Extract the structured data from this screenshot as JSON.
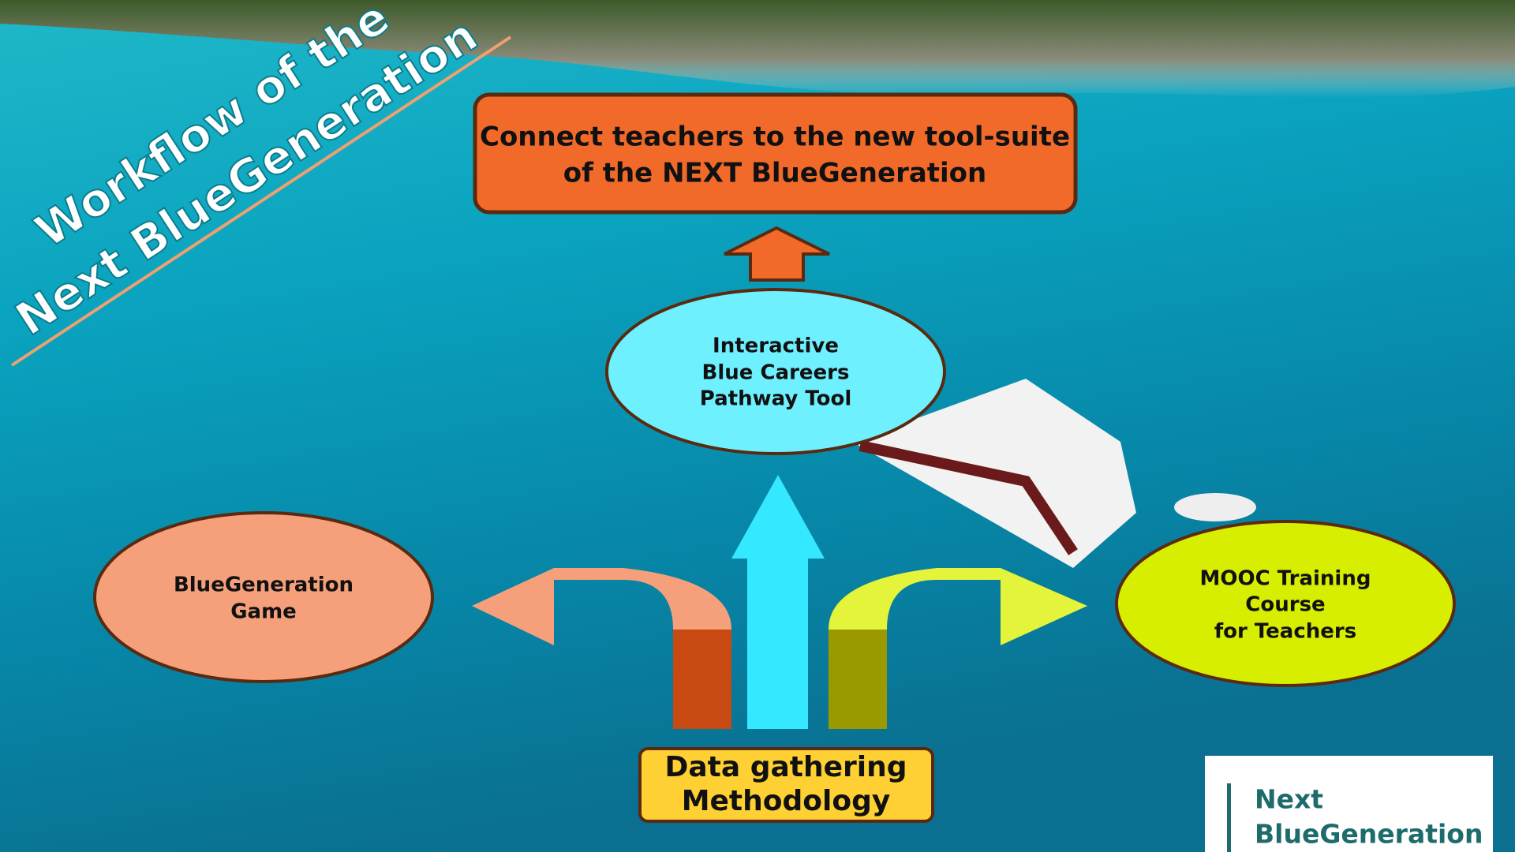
{
  "title": {
    "lines": [
      "Workflow of the",
      "Next BlueGeneration"
    ]
  },
  "nodes": [
    {
      "lines": [
        "Connect teachers to the new tool-suite",
        "of the NEXT BlueGeneration"
      ]
    },
    {
      "lines": [
        "Interactive",
        "Blue Careers",
        "Pathway Tool"
      ]
    },
    {
      "lines": [
        "BlueGeneration",
        "Game"
      ]
    },
    {
      "lines": [
        "MOOC Training",
        "Course",
        "for Teachers"
      ]
    },
    {
      "lines": [
        "Data gathering",
        "Methodology"
      ]
    }
  ],
  "logo": {
    "lines": [
      "Next",
      "BlueGeneration"
    ]
  }
}
